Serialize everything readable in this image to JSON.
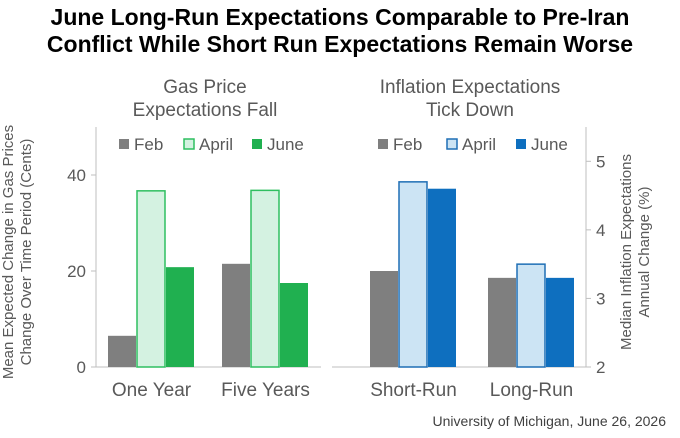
{
  "title": "June Long-Run Expectations Comparable to Pre-Iran\nConflict While Short Run Expectations Remain Worse",
  "source": "University of Michigan, June 26, 2026",
  "colors": {
    "feb": "#7f7f7f",
    "april_fill": "#d4f2e1",
    "april_stroke": "#2fbf60",
    "june_gas": "#20b050",
    "april_infl_fill": "#cce4f4",
    "april_infl_stroke": "#1f6fb5",
    "june_infl": "#0e6fbf",
    "axis": "#bfbfbf",
    "text": "#595959"
  },
  "chart_data": [
    {
      "type": "bar",
      "title": "Gas Price\nExpectations Fall",
      "ylabel": "Mean Expected Change in Gas Prices\nChange Over Time Period (Cents)",
      "ylim": [
        0,
        50
      ],
      "yticks": [
        0,
        20,
        40
      ],
      "categories": [
        "One Year",
        "Five Years"
      ],
      "series": [
        {
          "name": "Feb",
          "values": [
            6.5,
            21.5
          ]
        },
        {
          "name": "April",
          "values": [
            36.7,
            36.8
          ]
        },
        {
          "name": "June",
          "values": [
            20.8,
            17.5
          ]
        }
      ],
      "legend": "top"
    },
    {
      "type": "bar",
      "title": "Inflation Expectations\nTick Down",
      "ylabel": "Median Inflation Expectations\nAnnual Change (%)",
      "ylim": [
        2,
        5.5
      ],
      "yticks": [
        2,
        3,
        4,
        5
      ],
      "categories": [
        "Short-Run",
        "Long-Run"
      ],
      "series": [
        {
          "name": "Feb",
          "values": [
            3.4,
            3.3
          ]
        },
        {
          "name": "April",
          "values": [
            4.7,
            3.5
          ]
        },
        {
          "name": "June",
          "values": [
            4.6,
            3.3
          ]
        }
      ],
      "legend": "top"
    }
  ]
}
